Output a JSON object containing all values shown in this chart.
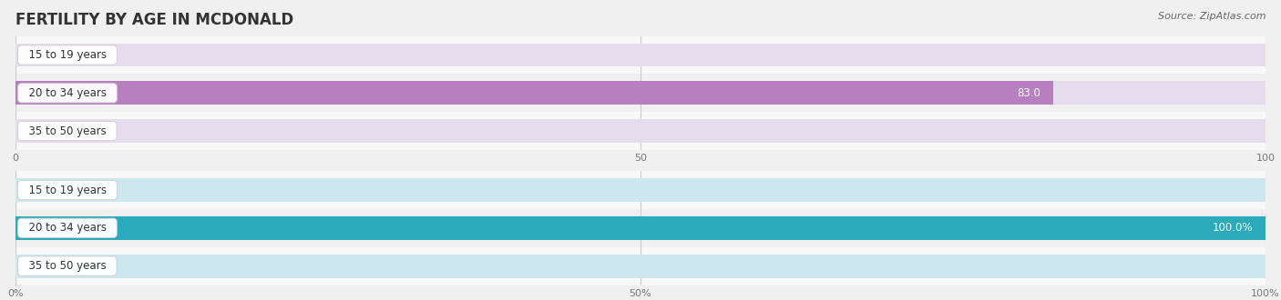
{
  "title": "FERTILITY BY AGE IN MCDONALD",
  "source": "Source: ZipAtlas.com",
  "top_chart": {
    "categories": [
      "15 to 19 years",
      "20 to 34 years",
      "35 to 50 years"
    ],
    "values": [
      0.0,
      83.0,
      0.0
    ],
    "xlim": [
      0,
      100
    ],
    "xticks": [
      0.0,
      50.0,
      100.0
    ],
    "bar_color": "#b87fc0",
    "bar_bg_color": "#e5dded",
    "label_suffix": "",
    "value_label_inside_color": "#ffffff",
    "value_label_outside_color": "#888888"
  },
  "bottom_chart": {
    "categories": [
      "15 to 19 years",
      "20 to 34 years",
      "35 to 50 years"
    ],
    "values": [
      0.0,
      100.0,
      0.0
    ],
    "xlim": [
      0,
      100
    ],
    "xticks": [
      0.0,
      50.0,
      100.0
    ],
    "bar_color": "#2aaabb",
    "bar_bg_color": "#cce8ee",
    "label_suffix": "%",
    "value_label_inside_color": "#ffffff",
    "value_label_outside_color": "#888888"
  },
  "bg_color": "#f0f0f0",
  "row_bg_color": "#ececec",
  "bar_height": 0.62,
  "label_fontsize": 8.5,
  "tick_fontsize": 8,
  "title_fontsize": 12,
  "source_fontsize": 8
}
